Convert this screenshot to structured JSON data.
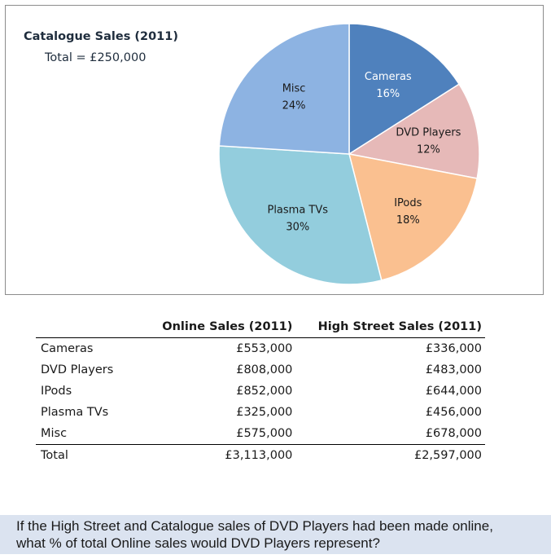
{
  "chart_data": {
    "type": "pie",
    "title": "Catalogue Sales (2011)",
    "subtitle": "Total = £250,000",
    "slices": [
      {
        "label": "Cameras",
        "value": 16,
        "value_label": "16%",
        "color": "#4f81bd",
        "text_color": "#ffffff"
      },
      {
        "label": "DVD Players",
        "value": 12,
        "value_label": "12%",
        "color": "#e6b9b8",
        "text_color": "#1a1a1a"
      },
      {
        "label": "IPods",
        "value": 18,
        "value_label": "18%",
        "color": "#fac090",
        "text_color": "#1a1a1a"
      },
      {
        "label": "Plasma TVs",
        "value": 30,
        "value_label": "30%",
        "color": "#93cddd",
        "text_color": "#1a1a1a"
      },
      {
        "label": "Misc",
        "value": 24,
        "value_label": "24%",
        "color": "#8db3e2",
        "text_color": "#1a1a1a"
      }
    ]
  },
  "table": {
    "headers": [
      "",
      "Online Sales (2011)",
      "High Street Sales (2011)"
    ],
    "rows": [
      {
        "name": "Cameras",
        "online": "£553,000",
        "highstreet": "£336,000"
      },
      {
        "name": "DVD Players",
        "online": "£808,000",
        "highstreet": "£483,000"
      },
      {
        "name": "IPods",
        "online": "£852,000",
        "highstreet": "£644,000"
      },
      {
        "name": "Plasma TVs",
        "online": "£325,000",
        "highstreet": "£456,000"
      },
      {
        "name": "Misc",
        "online": "£575,000",
        "highstreet": "£678,000"
      }
    ],
    "total": {
      "name": "Total",
      "online": "£3,113,000",
      "highstreet": "£2,597,000"
    }
  },
  "question": {
    "line1": "If the High Street and Catalogue sales of DVD Players had been made online,",
    "line2": "what % of total Online sales would DVD Players represent?"
  }
}
